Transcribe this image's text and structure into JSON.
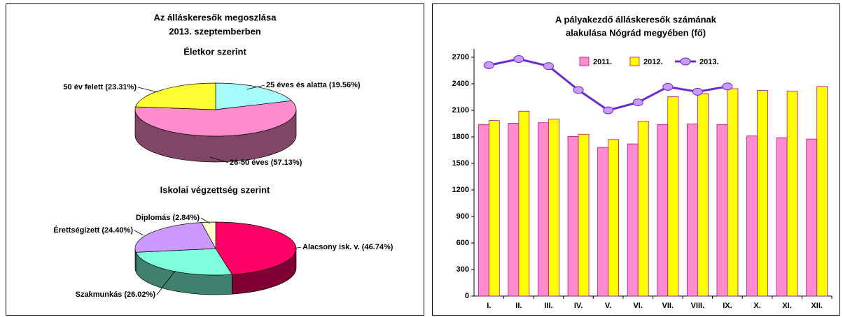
{
  "chart_data": [
    {
      "type": "pie",
      "title": [
        "Az álláskeresők megoszlása",
        "2013. szeptemberben"
      ],
      "subtitle": "Életkor szerint",
      "values": [
        19.56,
        57.13,
        23.31
      ],
      "value_labels": [
        "25 éves és alatta (19.56%)",
        "26-50 éves (57.13%)",
        "50 év felett (23.31%)"
      ],
      "colors": [
        "#a6fbfb",
        "#ff8ccc",
        "#ffff33"
      ]
    },
    {
      "type": "pie",
      "subtitle": "Iskolai végzettség szerint",
      "values": [
        46.74,
        26.02,
        24.4,
        2.84
      ],
      "value_labels": [
        "Alacsony isk. v. (46.74%)",
        "Szakmunkás (26.02%)",
        "Érettségizett (24.40%)",
        "Diplomás (2.84%)"
      ],
      "colors": [
        "#ff0066",
        "#80ffdd",
        "#cc99ff",
        "#ffffcc"
      ]
    },
    {
      "type": "bar",
      "title": [
        "A pályakezdő álláskeresők számának",
        "alakulása Nógrád megyében (fő)"
      ],
      "categories": [
        "I.",
        "II.",
        "III.",
        "IV.",
        "V.",
        "VI.",
        "VII.",
        "VIII.",
        "IX.",
        "X.",
        "XI.",
        "XII."
      ],
      "series": [
        {
          "name": "2011.",
          "type": "bar",
          "color": "#ff8ccc",
          "values": [
            1940,
            1955,
            1960,
            1805,
            1680,
            1720,
            1940,
            1945,
            1940,
            1810,
            1790,
            1775
          ]
        },
        {
          "name": "2012.",
          "type": "bar",
          "color": "#ffff00",
          "values": [
            1985,
            2090,
            2000,
            1830,
            1770,
            1975,
            2255,
            2290,
            2345,
            2325,
            2315,
            2370
          ]
        },
        {
          "name": "2013.",
          "type": "line",
          "color": "#6a2ccf",
          "marker_color": "#cc99ff",
          "values": [
            2610,
            2680,
            2600,
            2330,
            2100,
            2190,
            2365,
            2310,
            2370,
            null,
            null,
            null
          ]
        }
      ],
      "ylim": [
        0,
        2700
      ],
      "yticks": [
        0,
        300,
        600,
        900,
        1200,
        1500,
        1800,
        2100,
        2400,
        2700
      ],
      "legend": "top"
    }
  ]
}
